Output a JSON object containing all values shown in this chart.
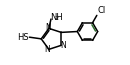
{
  "bg_color": "#ffffff",
  "bond_color": "#000000",
  "aromatic_bond_color": "#2d6b2d",
  "text_color": "#000000",
  "figsize": [
    1.3,
    0.65
  ],
  "dpi": 100,
  "xlim": [
    -0.95,
    1.65
  ],
  "ylim": [
    -0.55,
    0.95
  ],
  "lw": 1.1,
  "fontsize_label": 6.0,
  "fontsize_sub": 4.5
}
